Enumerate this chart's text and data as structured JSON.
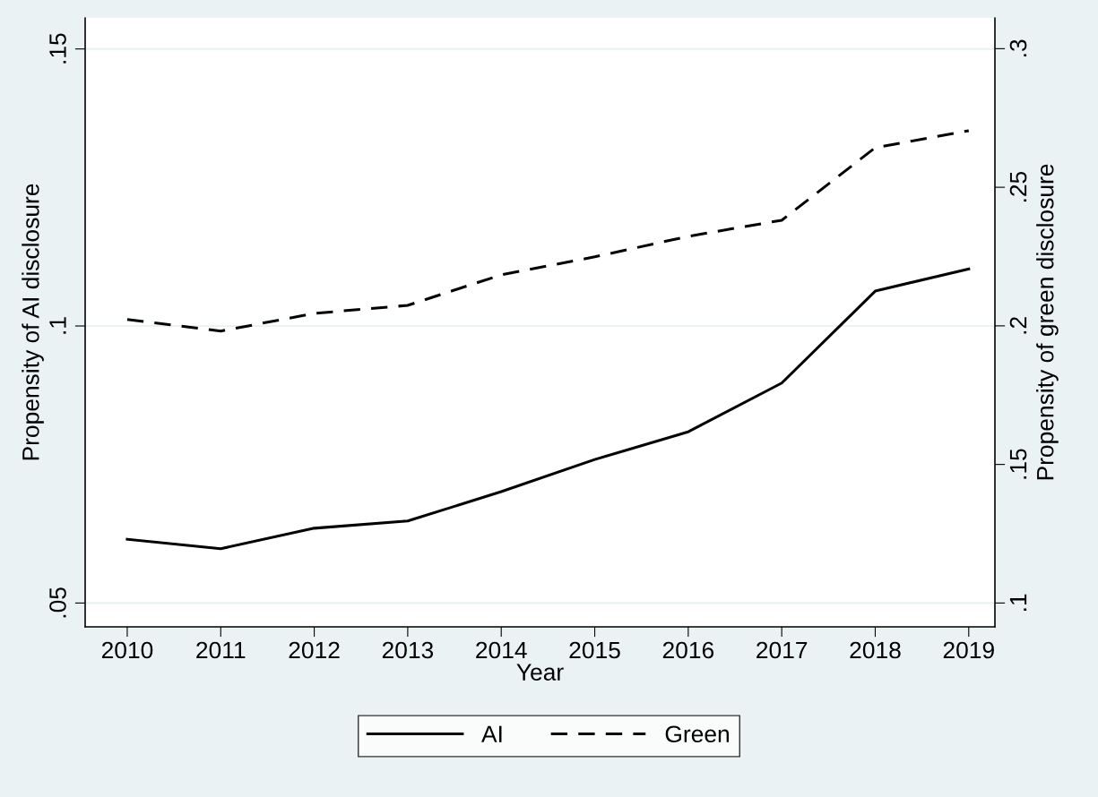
{
  "chart_data": {
    "type": "line",
    "xlabel": "Year",
    "ylabel": "Propensity of AI disclosure",
    "y2label": "Propensity of green disclosure",
    "x": [
      2010,
      2011,
      2012,
      2013,
      2014,
      2015,
      2016,
      2017,
      2018,
      2019
    ],
    "xlim": [
      2009.55,
      2019.28
    ],
    "xticks": [
      2010,
      2011,
      2012,
      2013,
      2014,
      2015,
      2016,
      2017,
      2018,
      2019
    ],
    "ylim": [
      0.0457,
      0.1556
    ],
    "yticks": [
      {
        "value": 0.05,
        "label": ".05"
      },
      {
        "value": 0.1,
        "label": ".1"
      },
      {
        "value": 0.15,
        "label": ".15"
      }
    ],
    "y2lim": [
      0.0914,
      0.3111
    ],
    "y2ticks": [
      {
        "value": 0.1,
        "label": ".1"
      },
      {
        "value": 0.15,
        "label": ".15"
      },
      {
        "value": 0.2,
        "label": ".2"
      },
      {
        "value": 0.25,
        "label": ".25"
      },
      {
        "value": 0.3,
        "label": ".3"
      }
    ],
    "grid": "y",
    "legend": "bottom",
    "marker": "none",
    "series": [
      {
        "name": "AI",
        "color": "#000000",
        "line_style": "solid",
        "values": [
          0.0615,
          0.0598,
          0.0635,
          0.0648,
          0.0701,
          0.0759,
          0.0809,
          0.0897,
          0.1063,
          0.1103
        ]
      },
      {
        "name": "Green",
        "color": "#000000",
        "line_style": "dashed",
        "axis": "y2",
        "values": [
          0.2023,
          0.1981,
          0.2045,
          0.2074,
          0.2184,
          0.2249,
          0.2323,
          0.2381,
          0.2643,
          0.2704
        ]
      }
    ]
  }
}
